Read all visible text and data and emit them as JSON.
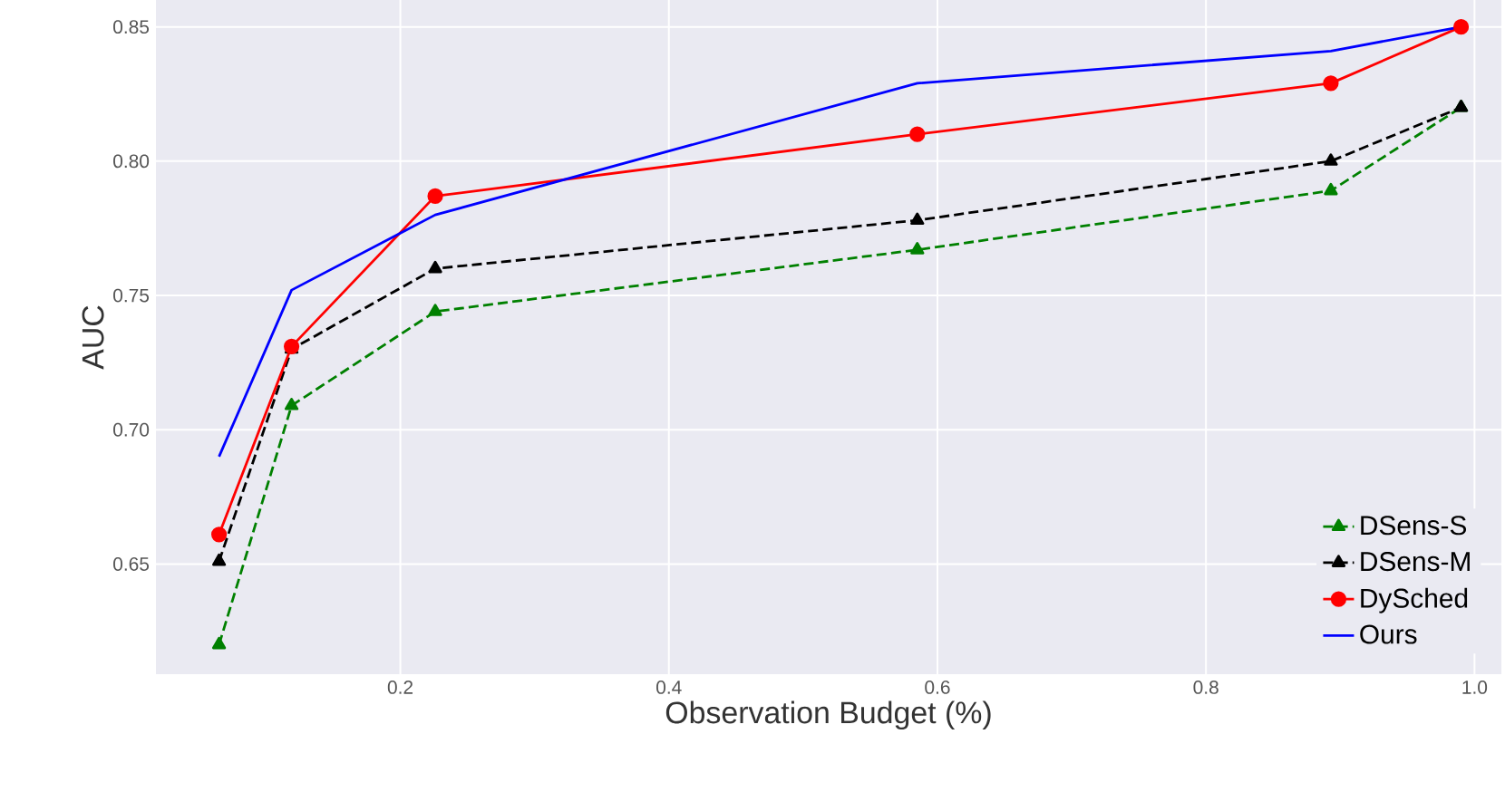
{
  "chart_data": {
    "type": "line",
    "xlabel": "Observation Budget (%)",
    "ylabel": "AUC",
    "xlim": [
      0.018,
      1.02
    ],
    "ylim": [
      0.609,
      0.86
    ],
    "xticks": [
      0.2,
      0.4,
      0.6,
      0.8,
      {
        "value": 1.0,
        "label": "1.0"
      }
    ],
    "yticks": [
      0.65,
      {
        "value": 0.7,
        "label": "0.70"
      },
      0.75,
      {
        "value": 0.8,
        "label": "0.80"
      },
      0.85
    ],
    "grid": true,
    "legend": "bottom right",
    "x": [
      0.065,
      0.119,
      0.226,
      0.585,
      0.893,
      0.99
    ],
    "series": [
      {
        "name": "DSens-S",
        "color": "#008000",
        "marker": "triangle",
        "line_style": "dashed",
        "values": [
          0.62,
          0.709,
          0.744,
          0.767,
          0.789,
          0.82
        ]
      },
      {
        "name": "DSens-M",
        "color": "#000000",
        "marker": "triangle",
        "line_style": "dashed",
        "values": [
          0.651,
          0.73,
          0.76,
          0.778,
          0.8,
          0.82
        ]
      },
      {
        "name": "DySched",
        "color": "#ff0000",
        "marker": "circle",
        "line_style": "solid",
        "values": [
          0.661,
          0.731,
          0.787,
          0.81,
          0.829,
          0.85
        ]
      },
      {
        "name": "Ours",
        "color": "#0000ff",
        "marker": "none",
        "line_style": "solid",
        "values": [
          0.69,
          0.752,
          0.78,
          0.829,
          0.841,
          0.85
        ]
      }
    ]
  }
}
